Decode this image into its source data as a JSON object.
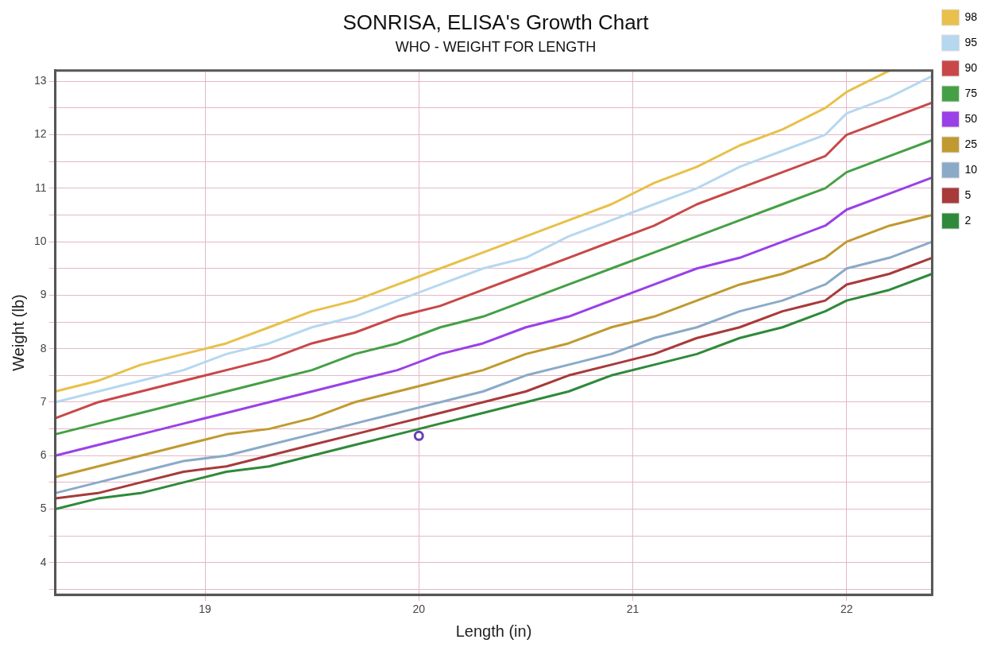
{
  "chart_data": {
    "type": "line",
    "title": "SONRISA, ELISA's Growth Chart",
    "subtitle": "WHO - WEIGHT FOR LENGTH",
    "xlabel": "Length (in)",
    "ylabel": "Weight (lb)",
    "x": [
      18.3,
      18.5,
      18.7,
      18.9,
      19.1,
      19.3,
      19.5,
      19.7,
      19.9,
      20.1,
      20.3,
      20.5,
      20.7,
      20.9,
      21.1,
      21.3,
      21.5,
      21.7,
      21.9,
      22.0,
      22.2,
      22.4
    ],
    "series": [
      {
        "name": "98",
        "color": "#e8c04a",
        "values": [
          7.2,
          7.4,
          7.7,
          7.9,
          8.1,
          8.4,
          8.7,
          8.9,
          9.2,
          9.5,
          9.8,
          10.1,
          10.4,
          10.7,
          11.1,
          11.4,
          11.8,
          12.1,
          12.5,
          12.8,
          13.2,
          null
        ]
      },
      {
        "name": "95",
        "color": "#b6d8ef",
        "values": [
          7.0,
          7.2,
          7.4,
          7.6,
          7.9,
          8.1,
          8.4,
          8.6,
          8.9,
          9.2,
          9.5,
          9.7,
          10.1,
          10.4,
          10.7,
          11.0,
          11.4,
          11.7,
          12.0,
          12.4,
          12.7,
          13.1
        ]
      },
      {
        "name": "90",
        "color": "#c84848",
        "values": [
          6.7,
          7.0,
          7.2,
          7.4,
          7.6,
          7.8,
          8.1,
          8.3,
          8.6,
          8.8,
          9.1,
          9.4,
          9.7,
          10.0,
          10.3,
          10.7,
          11.0,
          11.3,
          11.6,
          12.0,
          12.3,
          12.6
        ]
      },
      {
        "name": "75",
        "color": "#45a045",
        "values": [
          6.4,
          6.6,
          6.8,
          7.0,
          7.2,
          7.4,
          7.6,
          7.9,
          8.1,
          8.4,
          8.6,
          8.9,
          9.2,
          9.5,
          9.8,
          10.1,
          10.4,
          10.7,
          11.0,
          11.3,
          11.6,
          11.9
        ]
      },
      {
        "name": "50",
        "color": "#9a40e8",
        "values": [
          6.0,
          6.2,
          6.4,
          6.6,
          6.8,
          7.0,
          7.2,
          7.4,
          7.6,
          7.9,
          8.1,
          8.4,
          8.6,
          8.9,
          9.2,
          9.5,
          9.7,
          10.0,
          10.3,
          10.6,
          10.9,
          11.2
        ]
      },
      {
        "name": "25",
        "color": "#c09a30",
        "values": [
          5.6,
          5.8,
          6.0,
          6.2,
          6.4,
          6.5,
          6.7,
          7.0,
          7.2,
          7.4,
          7.6,
          7.9,
          8.1,
          8.4,
          8.6,
          8.9,
          9.2,
          9.4,
          9.7,
          10.0,
          10.3,
          10.5
        ]
      },
      {
        "name": "10",
        "color": "#8aaac8",
        "values": [
          5.3,
          5.5,
          5.7,
          5.9,
          6.0,
          6.2,
          6.4,
          6.6,
          6.8,
          7.0,
          7.2,
          7.5,
          7.7,
          7.9,
          8.2,
          8.4,
          8.7,
          8.9,
          9.2,
          9.5,
          9.7,
          10.0
        ]
      },
      {
        "name": "5",
        "color": "#a83a3a",
        "values": [
          5.2,
          5.3,
          5.5,
          5.7,
          5.8,
          6.0,
          6.2,
          6.4,
          6.6,
          6.8,
          7.0,
          7.2,
          7.5,
          7.7,
          7.9,
          8.2,
          8.4,
          8.7,
          8.9,
          9.2,
          9.4,
          9.7
        ]
      },
      {
        "name": "2",
        "color": "#2e8a3a",
        "values": [
          5.0,
          5.2,
          5.3,
          5.5,
          5.7,
          5.8,
          6.0,
          6.2,
          6.4,
          6.6,
          6.8,
          7.0,
          7.2,
          7.5,
          7.7,
          7.9,
          8.2,
          8.4,
          8.7,
          8.9,
          9.1,
          9.4
        ]
      },
      {
        "type": "scatter",
        "marker": "circle",
        "color": "#6a3fb5",
        "x": [
          20
        ],
        "values": [
          6.37
        ]
      }
    ],
    "xlim": [
      18.3,
      22.4
    ],
    "xticks": [
      19,
      20,
      21,
      22
    ],
    "ylim": [
      3.4,
      13.2
    ],
    "yticks": [
      {
        "value": 3.5,
        "label": null
      },
      4,
      {
        "value": 4.5,
        "label": null
      },
      5,
      {
        "value": 5.5,
        "label": null
      },
      6,
      {
        "value": 6.5,
        "label": null
      },
      7,
      {
        "value": 7.5,
        "label": null
      },
      8,
      {
        "value": 8.5,
        "label": null
      },
      9,
      {
        "value": 9.5,
        "label": null
      },
      10,
      {
        "value": 10.5,
        "label": null
      },
      11,
      {
        "value": 11.5,
        "label": null
      },
      12,
      {
        "value": 12.5,
        "label": null
      },
      13
    ],
    "grid": true,
    "legend": "top right",
    "marker": "none",
    "line_style": "solid"
  }
}
